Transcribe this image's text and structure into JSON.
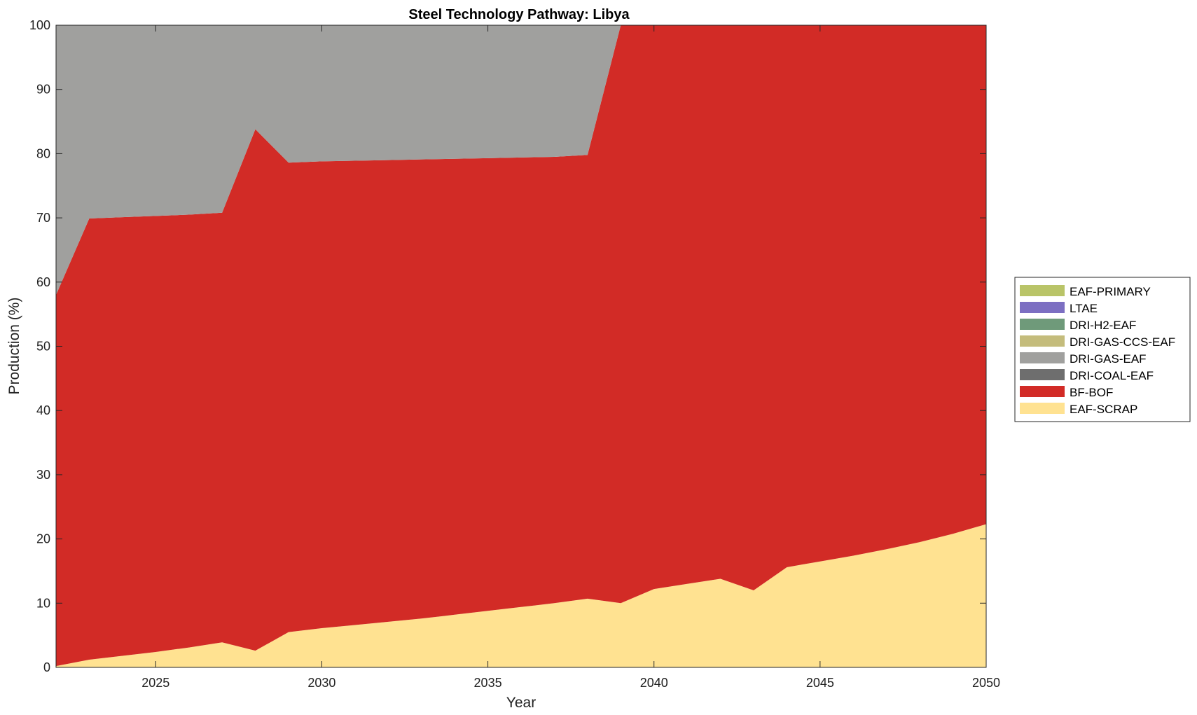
{
  "chart_data": {
    "type": "area",
    "stacked": true,
    "title": "Steel Technology Pathway: Libya",
    "xlabel": "Year",
    "ylabel": "Production (%)",
    "xlim": [
      2022,
      2050
    ],
    "ylim": [
      0,
      100
    ],
    "xticks": [
      2025,
      2030,
      2035,
      2040,
      2045,
      2050
    ],
    "yticks": [
      0,
      10,
      20,
      30,
      40,
      50,
      60,
      70,
      80,
      90,
      100
    ],
    "grid": false,
    "legend_position": "right",
    "x": [
      2022,
      2023,
      2024,
      2025,
      2026,
      2027,
      2028,
      2029,
      2030,
      2031,
      2032,
      2033,
      2034,
      2035,
      2036,
      2037,
      2038,
      2039,
      2040,
      2041,
      2042,
      2043,
      2044,
      2045,
      2046,
      2047,
      2048,
      2049,
      2050
    ],
    "series": [
      {
        "name": "EAF-SCRAP",
        "color": "#ffe291",
        "values": [
          0.2,
          1.2,
          1.8,
          2.4,
          3.1,
          3.9,
          2.6,
          5.5,
          6.1,
          6.6,
          7.1,
          7.6,
          8.2,
          8.8,
          9.4,
          10.0,
          10.7,
          10.0,
          12.2,
          13.0,
          13.8,
          12.0,
          15.6,
          16.5,
          17.4,
          18.4,
          19.5,
          20.8,
          22.3
        ]
      },
      {
        "name": "BF-BOF",
        "color": "#d22b26",
        "values": [
          57.8,
          68.7,
          68.3,
          67.9,
          67.4,
          66.9,
          81.2,
          73.1,
          72.7,
          72.3,
          71.9,
          71.5,
          71.0,
          70.5,
          70.0,
          69.5,
          69.1,
          90.0,
          87.8,
          87.0,
          86.2,
          88.0,
          84.4,
          83.5,
          82.6,
          81.6,
          80.5,
          79.2,
          77.7
        ]
      },
      {
        "name": "DRI-COAL-EAF",
        "color": "#6e6e6e",
        "values": [
          0,
          0,
          0,
          0,
          0,
          0,
          0,
          0,
          0,
          0,
          0,
          0,
          0,
          0,
          0,
          0,
          0,
          0,
          0,
          0,
          0,
          0,
          0,
          0,
          0,
          0,
          0,
          0,
          0
        ]
      },
      {
        "name": "DRI-GAS-EAF",
        "color": "#a0a09e",
        "values": [
          42.0,
          30.1,
          29.9,
          29.7,
          29.5,
          29.2,
          16.2,
          21.4,
          21.2,
          21.1,
          21.0,
          20.9,
          20.8,
          20.7,
          20.6,
          20.5,
          20.2,
          0,
          0,
          0,
          0,
          0,
          0,
          0,
          0,
          0,
          0,
          0,
          0
        ]
      },
      {
        "name": "DRI-GAS-CCS-EAF",
        "color": "#c4bc7c",
        "values": [
          0,
          0,
          0,
          0,
          0,
          0,
          0,
          0,
          0,
          0,
          0,
          0,
          0,
          0,
          0,
          0,
          0,
          0,
          0,
          0,
          0,
          0,
          0,
          0,
          0,
          0,
          0,
          0,
          0
        ]
      },
      {
        "name": "DRI-H2-EAF",
        "color": "#6f9a7a",
        "values": [
          0,
          0,
          0,
          0,
          0,
          0,
          0,
          0,
          0,
          0,
          0,
          0,
          0,
          0,
          0,
          0,
          0,
          0,
          0,
          0,
          0,
          0,
          0,
          0,
          0,
          0,
          0,
          0,
          0
        ]
      },
      {
        "name": "LTAE",
        "color": "#7c6fc2",
        "values": [
          0,
          0,
          0,
          0,
          0,
          0,
          0,
          0,
          0,
          0,
          0,
          0,
          0,
          0,
          0,
          0,
          0,
          0,
          0,
          0,
          0,
          0,
          0,
          0,
          0,
          0,
          0,
          0,
          0
        ]
      },
      {
        "name": "EAF-PRIMARY",
        "color": "#b9c468",
        "values": [
          0,
          0,
          0,
          0,
          0,
          0,
          0,
          0,
          0,
          0,
          0,
          0,
          0,
          0,
          0,
          0,
          0,
          0,
          0,
          0,
          0,
          0,
          0,
          0,
          0,
          0,
          0,
          0,
          0
        ]
      }
    ],
    "legend_order": [
      "EAF-PRIMARY",
      "LTAE",
      "DRI-H2-EAF",
      "DRI-GAS-CCS-EAF",
      "DRI-GAS-EAF",
      "DRI-COAL-EAF",
      "BF-BOF",
      "EAF-SCRAP"
    ]
  }
}
